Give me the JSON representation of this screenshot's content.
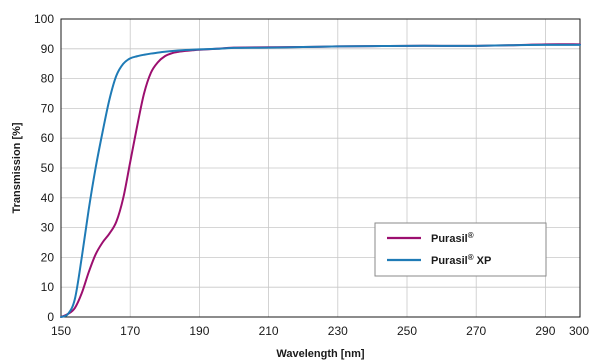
{
  "chart_data": {
    "type": "line",
    "title": "",
    "xlabel": "Wavelength [nm]",
    "ylabel": "Transmission [%]",
    "xlim": [
      150,
      300
    ],
    "ylim": [
      0,
      100
    ],
    "x_ticks": [
      "150",
      "170",
      "190",
      "210",
      "230",
      "250",
      "270",
      "290",
      "300"
    ],
    "y_ticks": [
      "0",
      "10",
      "20",
      "30",
      "40",
      "50",
      "60",
      "70",
      "80",
      "90",
      "100"
    ],
    "grid": true,
    "legend_position": "bottom-right",
    "series": [
      {
        "name": "Purasil",
        "name_superscript": "®",
        "color": "#9c0f6f",
        "x": [
          150,
          152,
          154,
          156,
          158,
          160,
          162,
          164,
          166,
          168,
          170,
          172,
          174,
          176,
          178,
          180,
          182,
          184,
          186,
          188,
          190,
          195,
          200,
          210,
          220,
          230,
          240,
          250,
          260,
          270,
          280,
          290,
          300
        ],
        "y": [
          0,
          1,
          3,
          8,
          15,
          21,
          25,
          28,
          32,
          40,
          52,
          64,
          75,
          82,
          85.5,
          87.5,
          88.5,
          89,
          89.3,
          89.5,
          89.7,
          90,
          90.4,
          90.5,
          90.6,
          90.8,
          90.9,
          91,
          91,
          91,
          91.2,
          91.5,
          91.5
        ]
      },
      {
        "name": "Purasil",
        "name_superscript": "®",
        "name_suffix": " XP",
        "color": "#1f7bb6",
        "x": [
          150,
          152,
          154,
          156,
          158,
          160,
          162,
          164,
          166,
          168,
          170,
          172,
          174,
          176,
          178,
          180,
          185,
          190,
          195,
          200,
          210,
          220,
          230,
          240,
          250,
          260,
          270,
          280,
          290,
          300
        ],
        "y": [
          0,
          1,
          6,
          20,
          36,
          50,
          62,
          73,
          81,
          85,
          86.8,
          87.5,
          88,
          88.4,
          88.7,
          89,
          89.5,
          89.8,
          90,
          90.3,
          90.4,
          90.6,
          90.8,
          90.9,
          91,
          91,
          91,
          91.2,
          91.3,
          91.3
        ]
      }
    ]
  }
}
